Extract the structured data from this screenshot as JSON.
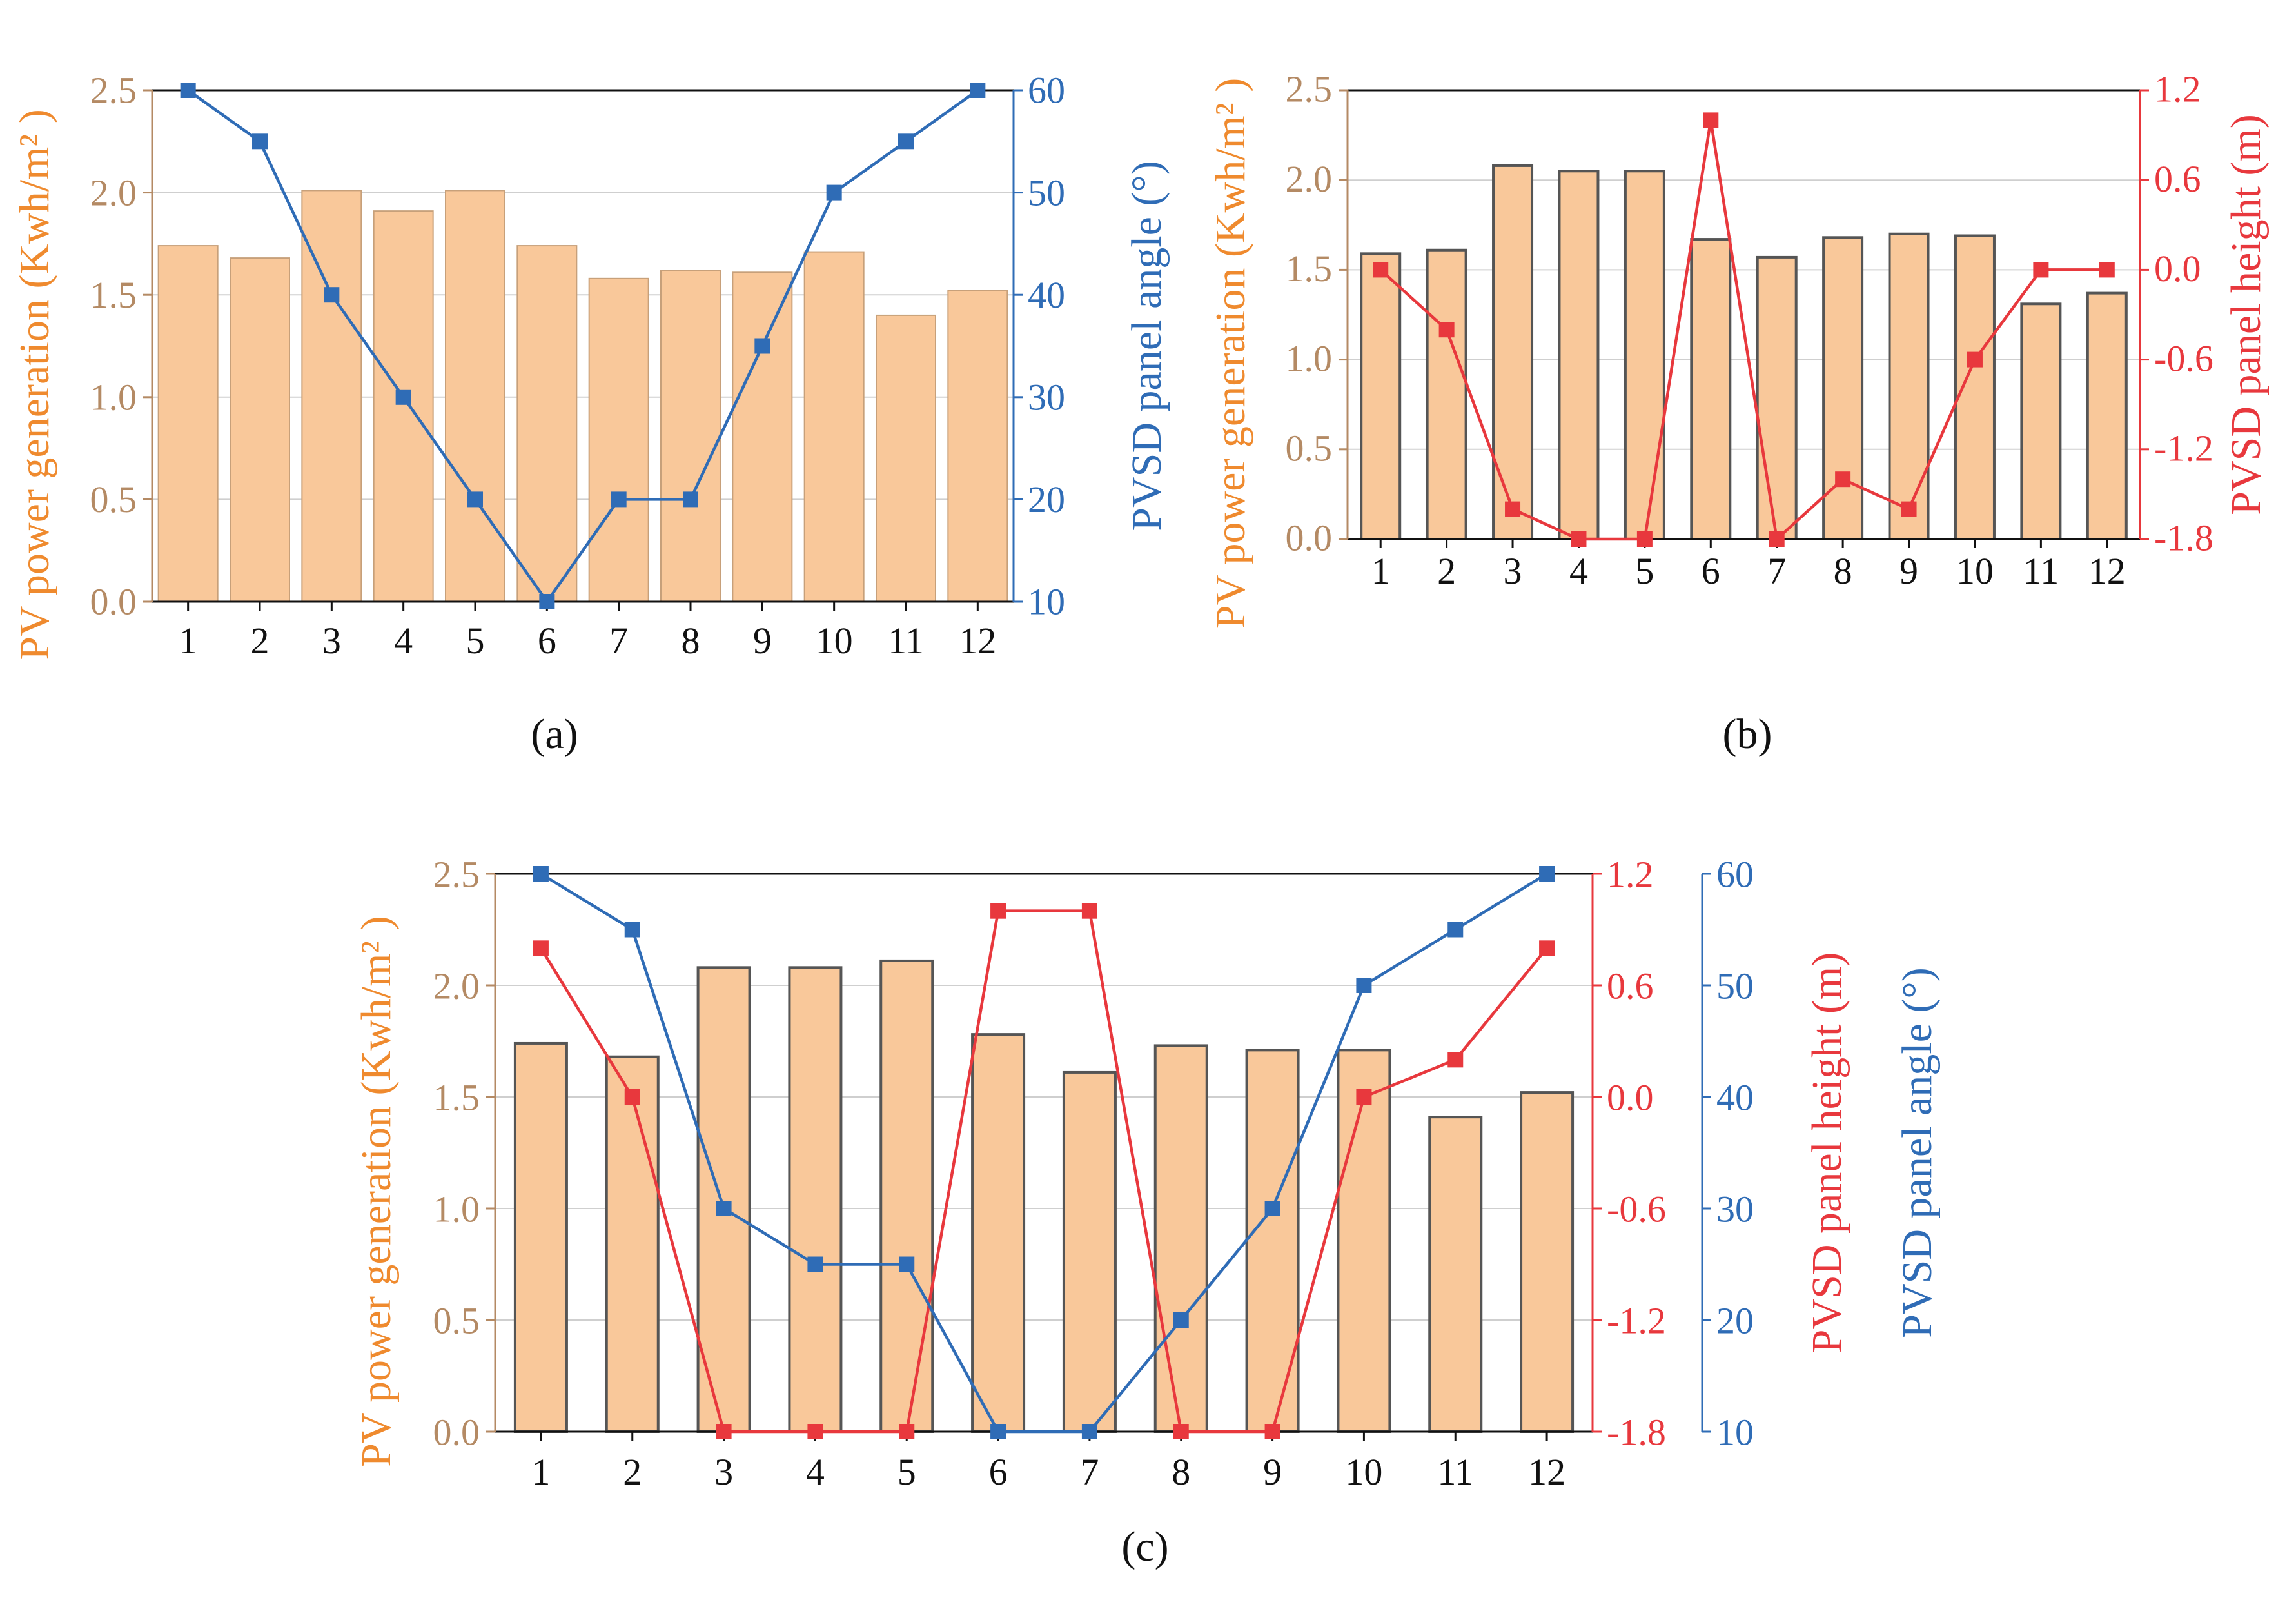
{
  "colors": {
    "bar_fill": "#f9c89a",
    "bar_edge_light": "#c7a07a",
    "bar_edge_dark": "#555555",
    "left_axis_text": "#b48a64",
    "left_axis_title": "#ef8a2e",
    "angle_series": "#2f6cb6",
    "height_series": "#e8383d",
    "frame": "#111111"
  },
  "chart_data": [
    {
      "type": "bar+line",
      "label": "(a)",
      "categories": [
        "1",
        "2",
        "3",
        "4",
        "5",
        "6",
        "7",
        "8",
        "9",
        "10",
        "11",
        "12"
      ],
      "xlabel": "",
      "y_left": {
        "label": "PV power generation (Kwh/m² )",
        "ylim": [
          0,
          2.5
        ],
        "ticks": [
          "0.0",
          "0.5",
          "1.0",
          "1.5",
          "2.0",
          "2.5"
        ],
        "tick_values": [
          0,
          0.5,
          1.0,
          1.5,
          2.0,
          2.5
        ]
      },
      "y_right": [
        {
          "label": "PVSD panel angle (°)",
          "ylim": [
            10,
            60
          ],
          "ticks": [
            "10",
            "20",
            "30",
            "40",
            "50",
            "60"
          ],
          "tick_values": [
            10,
            20,
            30,
            40,
            50,
            60
          ]
        }
      ],
      "series": [
        {
          "name": "PV power generation",
          "kind": "bar",
          "axis": "left",
          "values": [
            1.74,
            1.68,
            2.01,
            1.91,
            2.01,
            1.74,
            1.58,
            1.62,
            1.61,
            1.71,
            1.4,
            1.52
          ]
        },
        {
          "name": "PVSD panel angle",
          "kind": "line",
          "axis": "right0",
          "color": "#2f6cb6",
          "values": [
            60,
            55,
            40,
            30,
            20,
            10,
            20,
            20,
            35,
            50,
            55,
            60
          ]
        }
      ]
    },
    {
      "type": "bar+line",
      "label": "(b)",
      "categories": [
        "1",
        "2",
        "3",
        "4",
        "5",
        "6",
        "7",
        "8",
        "9",
        "10",
        "11",
        "12"
      ],
      "xlabel": "",
      "y_left": {
        "label": "PV power generation (Kwh/m² )",
        "ylim": [
          0,
          2.5
        ],
        "ticks": [
          "0.0",
          "0.5",
          "1.0",
          "1.5",
          "2.0",
          "2.5"
        ],
        "tick_values": [
          0,
          0.5,
          1.0,
          1.5,
          2.0,
          2.5
        ]
      },
      "y_right": [
        {
          "label": "PVSD panel height (m)",
          "ylim": [
            -1.8,
            1.2
          ],
          "ticks": [
            "-1.8",
            "-1.2",
            "-0.6",
            "0.0",
            "0.6",
            "1.2"
          ],
          "tick_values": [
            -1.8,
            -1.2,
            -0.6,
            0.0,
            0.6,
            1.2
          ]
        }
      ],
      "series": [
        {
          "name": "PV power generation",
          "kind": "bar",
          "axis": "left",
          "values": [
            1.59,
            1.61,
            2.08,
            2.05,
            2.05,
            1.67,
            1.57,
            1.68,
            1.7,
            1.69,
            1.31,
            1.37
          ]
        },
        {
          "name": "PVSD panel height",
          "kind": "line",
          "axis": "right0",
          "color": "#e8383d",
          "values": [
            0.0,
            -0.4,
            -1.6,
            -1.8,
            -1.8,
            1.0,
            -1.8,
            -1.4,
            -1.6,
            -0.6,
            0.0,
            0.0
          ]
        }
      ]
    },
    {
      "type": "bar+line",
      "label": "(c)",
      "categories": [
        "1",
        "2",
        "3",
        "4",
        "5",
        "6",
        "7",
        "8",
        "9",
        "10",
        "11",
        "12"
      ],
      "xlabel": "",
      "y_left": {
        "label": "PV power generation (Kwh/m² )",
        "ylim": [
          0,
          2.5
        ],
        "ticks": [
          "0.0",
          "0.5",
          "1.0",
          "1.5",
          "2.0",
          "2.5"
        ],
        "tick_values": [
          0,
          0.5,
          1.0,
          1.5,
          2.0,
          2.5
        ]
      },
      "y_right": [
        {
          "label": "PVSD panel height (m)",
          "ylim": [
            -1.8,
            1.2
          ],
          "ticks": [
            "-1.8",
            "-1.2",
            "-0.6",
            "0.0",
            "0.6",
            "1.2"
          ],
          "tick_values": [
            -1.8,
            -1.2,
            -0.6,
            0.0,
            0.6,
            1.2
          ]
        },
        {
          "label": "PVSD panel angle (°)",
          "ylim": [
            10,
            60
          ],
          "ticks": [
            "10",
            "20",
            "30",
            "40",
            "50",
            "60"
          ],
          "tick_values": [
            10,
            20,
            30,
            40,
            50,
            60
          ]
        }
      ],
      "series": [
        {
          "name": "PV power generation",
          "kind": "bar",
          "axis": "left",
          "values": [
            1.74,
            1.68,
            2.08,
            2.08,
            2.11,
            1.78,
            1.61,
            1.73,
            1.71,
            1.71,
            1.41,
            1.52
          ]
        },
        {
          "name": "PVSD panel height",
          "kind": "line",
          "axis": "right0",
          "color": "#e8383d",
          "values": [
            0.8,
            0.0,
            -1.8,
            -1.8,
            -1.8,
            1.0,
            1.0,
            -1.8,
            -1.8,
            0.0,
            0.2,
            0.8
          ]
        },
        {
          "name": "PVSD panel angle",
          "kind": "line",
          "axis": "right1",
          "color": "#2f6cb6",
          "values": [
            60,
            55,
            30,
            25,
            25,
            10,
            10,
            20,
            30,
            50,
            55,
            60
          ]
        }
      ]
    }
  ]
}
